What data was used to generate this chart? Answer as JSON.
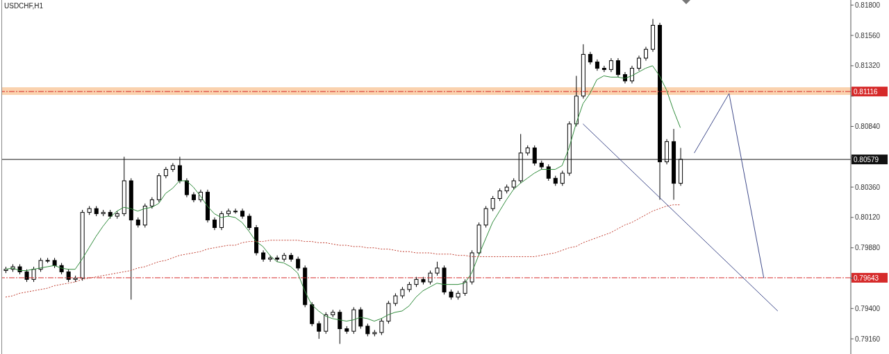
{
  "chart_data": {
    "type": "candlestick",
    "title": "USDCHF,H1",
    "categories": [
      null,
      null,
      null,
      null,
      null,
      null,
      null,
      null,
      null,
      null,
      null,
      null,
      null,
      null,
      null,
      null,
      null,
      null,
      null,
      null,
      null,
      null,
      null,
      null,
      null,
      null,
      null,
      null,
      null,
      null,
      null,
      null,
      null,
      null,
      null,
      null,
      null,
      null,
      null,
      null,
      null,
      null,
      null,
      null,
      null,
      null,
      null,
      null,
      null,
      null,
      null,
      null,
      null,
      null,
      null,
      null,
      null,
      null,
      null,
      null,
      null,
      null,
      null,
      null,
      null,
      null,
      null,
      null,
      null,
      null,
      null,
      null,
      null,
      null,
      null,
      null,
      null,
      null,
      null,
      null,
      null,
      null,
      null,
      null,
      null,
      null,
      null,
      null,
      null,
      null,
      null,
      null,
      null,
      null,
      null,
      null,
      null,
      null,
      null,
      null,
      null,
      null,
      null,
      null,
      null,
      null,
      null,
      null,
      null,
      null,
      null,
      null,
      null,
      null,
      null,
      null,
      null,
      null,
      null,
      null,
      null,
      null
    ],
    "ohlc": [
      [
        0.797,
        0.7973,
        0.7968,
        0.7971
      ],
      [
        0.7971,
        0.7975,
        0.7969,
        0.7973
      ],
      [
        0.7973,
        0.7975,
        0.7967,
        0.7969
      ],
      [
        0.7969,
        0.7971,
        0.7961,
        0.7963
      ],
      [
        0.7963,
        0.7973,
        0.7961,
        0.7971
      ],
      [
        0.7971,
        0.798,
        0.7969,
        0.7978
      ],
      [
        0.7978,
        0.798,
        0.7976,
        0.7978
      ],
      [
        0.7978,
        0.798,
        0.7972,
        0.7974
      ],
      [
        0.7974,
        0.7976,
        0.7967,
        0.7969
      ],
      [
        0.7969,
        0.7971,
        0.7961,
        0.7963
      ],
      [
        0.7963,
        0.7966,
        0.7961,
        0.7964
      ],
      [
        0.7964,
        0.8018,
        0.7962,
        0.8016
      ],
      [
        0.8016,
        0.8021,
        0.8014,
        0.8019
      ],
      [
        0.8019,
        0.8021,
        0.8013,
        0.8015
      ],
      [
        0.8015,
        0.8018,
        0.8013,
        0.8016
      ],
      [
        0.8016,
        0.8018,
        0.8011,
        0.8013
      ],
      [
        0.8013,
        0.8017,
        0.8011,
        0.8015
      ],
      [
        0.8015,
        0.806,
        0.8013,
        0.8041
      ],
      [
        0.8041,
        0.8043,
        0.7947,
        0.801
      ],
      [
        0.801,
        0.8012,
        0.8004,
        0.8006
      ],
      [
        0.8006,
        0.8023,
        0.8004,
        0.8021
      ],
      [
        0.8021,
        0.8028,
        0.8019,
        0.8026
      ],
      [
        0.8026,
        0.8047,
        0.8024,
        0.8045
      ],
      [
        0.8045,
        0.8052,
        0.8043,
        0.805
      ],
      [
        0.805,
        0.8055,
        0.8048,
        0.8053
      ],
      [
        0.8053,
        0.806,
        0.8039,
        0.8041
      ],
      [
        0.8041,
        0.8043,
        0.8028,
        0.803
      ],
      [
        0.803,
        0.8032,
        0.8024,
        0.8026
      ],
      [
        0.8026,
        0.8034,
        0.8024,
        0.8032
      ],
      [
        0.8032,
        0.8034,
        0.8008,
        0.801
      ],
      [
        0.801,
        0.8012,
        0.8002,
        0.8004
      ],
      [
        0.8004,
        0.8017,
        0.8002,
        0.8015
      ],
      [
        0.8015,
        0.8019,
        0.8013,
        0.8017
      ],
      [
        0.8017,
        0.8019,
        0.8015,
        0.8017
      ],
      [
        0.8017,
        0.8019,
        0.8011,
        0.8013
      ],
      [
        0.8013,
        0.8015,
        0.8002,
        0.8004
      ],
      [
        0.8004,
        0.8006,
        0.7982,
        0.7984
      ],
      [
        0.7984,
        0.7986,
        0.7977,
        0.7979
      ],
      [
        0.7979,
        0.7982,
        0.7977,
        0.798
      ],
      [
        0.798,
        0.7982,
        0.7977,
        0.7979
      ],
      [
        0.7979,
        0.7984,
        0.7977,
        0.7982
      ],
      [
        0.7982,
        0.7984,
        0.7977,
        0.7979
      ],
      [
        0.7979,
        0.7981,
        0.797,
        0.7972
      ],
      [
        0.7972,
        0.7974,
        0.7941,
        0.7943
      ],
      [
        0.7943,
        0.7945,
        0.7926,
        0.7928
      ],
      [
        0.7928,
        0.793,
        0.7916,
        0.7922
      ],
      [
        0.7922,
        0.7937,
        0.792,
        0.7935
      ],
      [
        0.7935,
        0.7939,
        0.7933,
        0.7937
      ],
      [
        0.7937,
        0.7939,
        0.7912,
        0.7924
      ],
      [
        0.7924,
        0.7926,
        0.792,
        0.7922
      ],
      [
        0.7922,
        0.7941,
        0.792,
        0.7939
      ],
      [
        0.7939,
        0.7941,
        0.7924,
        0.7926
      ],
      [
        0.7926,
        0.7928,
        0.7918,
        0.792
      ],
      [
        0.792,
        0.7923,
        0.7918,
        0.7921
      ],
      [
        0.7921,
        0.7932,
        0.7919,
        0.793
      ],
      [
        0.793,
        0.7946,
        0.7928,
        0.7944
      ],
      [
        0.7944,
        0.7952,
        0.7942,
        0.795
      ],
      [
        0.795,
        0.7957,
        0.7948,
        0.7955
      ],
      [
        0.7955,
        0.7961,
        0.7953,
        0.7959
      ],
      [
        0.7959,
        0.7965,
        0.7957,
        0.7963
      ],
      [
        0.7963,
        0.7965,
        0.7959,
        0.7961
      ],
      [
        0.7961,
        0.797,
        0.7959,
        0.7968
      ],
      [
        0.7968,
        0.7977,
        0.7966,
        0.7972
      ],
      [
        0.7972,
        0.7974,
        0.7951,
        0.7953
      ],
      [
        0.7953,
        0.7955,
        0.7947,
        0.7949
      ],
      [
        0.7949,
        0.7954,
        0.7947,
        0.7952
      ],
      [
        0.7952,
        0.7963,
        0.795,
        0.7961
      ],
      [
        0.7961,
        0.7986,
        0.7959,
        0.7984
      ],
      [
        0.7984,
        0.8008,
        0.7982,
        0.8006
      ],
      [
        0.8006,
        0.8021,
        0.8004,
        0.8019
      ],
      [
        0.8019,
        0.8029,
        0.8017,
        0.8027
      ],
      [
        0.8027,
        0.8035,
        0.8025,
        0.8033
      ],
      [
        0.8033,
        0.8038,
        0.8031,
        0.8036
      ],
      [
        0.8036,
        0.8043,
        0.8034,
        0.8041
      ],
      [
        0.8041,
        0.8078,
        0.8039,
        0.8063
      ],
      [
        0.8063,
        0.8069,
        0.8061,
        0.8067
      ],
      [
        0.8067,
        0.8069,
        0.8053,
        0.8055
      ],
      [
        0.8055,
        0.8057,
        0.805,
        0.8052
      ],
      [
        0.8052,
        0.8054,
        0.8041,
        0.8043
      ],
      [
        0.8043,
        0.8045,
        0.8037,
        0.8039
      ],
      [
        0.8039,
        0.8049,
        0.8037,
        0.8047
      ],
      [
        0.8047,
        0.8088,
        0.8045,
        0.8086
      ],
      [
        0.8086,
        0.8124,
        0.8084,
        0.8108
      ],
      [
        0.8108,
        0.8149,
        0.8106,
        0.8141
      ],
      [
        0.8141,
        0.8143,
        0.8133,
        0.8135
      ],
      [
        0.8135,
        0.8137,
        0.8128,
        0.813
      ],
      [
        0.813,
        0.8132,
        0.8127,
        0.8129
      ],
      [
        0.8129,
        0.8138,
        0.8127,
        0.8136
      ],
      [
        0.8136,
        0.8138,
        0.8123,
        0.8125
      ],
      [
        0.8125,
        0.8127,
        0.8118,
        0.812
      ],
      [
        0.812,
        0.8132,
        0.8118,
        0.813
      ],
      [
        0.813,
        0.814,
        0.8128,
        0.8138
      ],
      [
        0.8138,
        0.8147,
        0.8136,
        0.8145
      ],
      [
        0.8145,
        0.8169,
        0.8143,
        0.8164
      ],
      [
        0.8164,
        0.8166,
        0.8026,
        0.8056
      ],
      [
        0.8056,
        0.8074,
        0.8054,
        0.8072
      ],
      [
        0.8072,
        0.8082,
        0.8026,
        0.8039
      ],
      [
        0.8039,
        0.8067,
        0.8037,
        0.8058
      ],
      null,
      null,
      null,
      null,
      null,
      null,
      null,
      null,
      null,
      null,
      null,
      null,
      null,
      null,
      null,
      null,
      null,
      null,
      null,
      null,
      null,
      null,
      null,
      null
    ],
    "series": [
      {
        "type": "line",
        "color": "#2e8b3a",
        "values": [
          0.7971,
          0.7972,
          0.797,
          0.797,
          0.7971,
          0.7972,
          0.7973,
          0.7974,
          0.7972,
          0.7971,
          0.7971,
          0.7979,
          0.7988,
          0.7997,
          0.8005,
          0.8012,
          0.8017,
          0.802,
          0.8019,
          0.8017,
          0.8019,
          0.802,
          0.8023,
          0.8031,
          0.8035,
          0.8041,
          0.8041,
          0.8036,
          0.8029,
          0.8021,
          0.8015,
          0.8012,
          0.8013,
          0.8012,
          0.8008,
          0.8001,
          0.7993,
          0.7989,
          0.7982,
          0.7977,
          0.7976,
          0.7973,
          0.7968,
          0.7954,
          0.7943,
          0.7938,
          0.7934,
          0.7932,
          0.7931,
          0.793,
          0.7931,
          0.7933,
          0.7932,
          0.793,
          0.7932,
          0.7935,
          0.7937,
          0.7938,
          0.7942,
          0.7949,
          0.7954,
          0.7957,
          0.796,
          0.7959,
          0.7959,
          0.7959,
          0.796,
          0.7968,
          0.7982,
          0.7995,
          0.8008,
          0.8017,
          0.8026,
          0.8034,
          0.8039,
          0.8043,
          0.8047,
          0.805,
          0.805,
          0.805,
          0.8053,
          0.8067,
          0.8086,
          0.8102,
          0.811,
          0.8121,
          0.8124,
          0.8123,
          0.8123,
          0.8122,
          0.8124,
          0.8127,
          0.813,
          0.8132,
          0.8124,
          0.8113,
          0.8097,
          0.8083,
          null,
          null,
          null,
          null,
          null,
          null,
          null,
          null,
          null,
          null,
          null,
          null,
          null,
          null,
          null,
          null,
          null,
          null,
          null,
          null,
          null,
          null,
          null,
          null
        ]
      },
      {
        "type": "line",
        "color": "#c0392b",
        "line_style": "dotted",
        "values": [
          0.7949,
          0.795,
          0.7952,
          0.7953,
          0.7954,
          0.7955,
          0.7956,
          0.7958,
          0.7959,
          0.796,
          0.7961,
          0.7963,
          0.7964,
          0.7965,
          0.7966,
          0.7967,
          0.7968,
          0.7969,
          0.797,
          0.7972,
          0.7973,
          0.7975,
          0.7977,
          0.7978,
          0.798,
          0.7982,
          0.7983,
          0.7984,
          0.7985,
          0.7987,
          0.7988,
          0.7989,
          0.799,
          0.799,
          0.7992,
          0.7993,
          0.7993,
          0.7993,
          0.7994,
          0.7994,
          0.7994,
          0.7994,
          0.7994,
          0.7993,
          0.7993,
          0.7992,
          0.7992,
          0.7991,
          0.799,
          0.799,
          0.7989,
          0.7989,
          0.7988,
          0.7988,
          0.7987,
          0.7987,
          0.7986,
          0.7985,
          0.7985,
          0.7984,
          0.7984,
          0.7984,
          0.7983,
          0.7983,
          0.7983,
          0.7982,
          0.7982,
          0.7981,
          0.7981,
          0.7981,
          0.7981,
          0.7981,
          0.7981,
          0.7981,
          0.7981,
          0.7981,
          0.7981,
          0.7982,
          0.7983,
          0.7984,
          0.7986,
          0.7988,
          0.7989,
          0.7992,
          0.7994,
          0.7996,
          0.7998,
          0.8,
          0.8003,
          0.8006,
          0.8008,
          0.8011,
          0.8014,
          0.8017,
          0.8019,
          0.8021,
          0.8022,
          0.8022,
          null,
          null,
          null,
          null,
          null,
          null,
          null,
          null,
          null,
          null,
          null,
          null,
          null,
          null,
          null,
          null,
          null,
          null,
          null,
          null,
          null,
          null,
          null,
          null
        ]
      },
      {
        "type": "line",
        "color": "#3f4a8a",
        "values": [
          null,
          null,
          null,
          null,
          null,
          null,
          null,
          null,
          null,
          null,
          null,
          null,
          null,
          null,
          null,
          null,
          null,
          null,
          null,
          null,
          null,
          null,
          null,
          null,
          null,
          null,
          null,
          null,
          null,
          null,
          null,
          null,
          null,
          null,
          null,
          null,
          null,
          null,
          null,
          null,
          null,
          null,
          null,
          null,
          null,
          null,
          null,
          null,
          null,
          null,
          null,
          null,
          null,
          null,
          null,
          null,
          null,
          null,
          null,
          null,
          null,
          null,
          null,
          null,
          null,
          null,
          null,
          null,
          null,
          null,
          null,
          null,
          null,
          null,
          null,
          null,
          null,
          null,
          null,
          null,
          null,
          null,
          null,
          0.8086,
          null,
          null,
          null,
          null,
          null,
          null,
          null,
          null,
          null,
          null,
          null,
          null,
          null,
          null,
          null,
          null,
          null,
          null,
          null,
          null,
          null,
          null,
          null,
          null,
          null,
          null,
          null,
          0.7938,
          null,
          null,
          null,
          null,
          null,
          null,
          null,
          null,
          null,
          null
        ]
      },
      {
        "type": "line",
        "color": "#3f4a8a",
        "values": [
          null,
          null,
          null,
          null,
          null,
          null,
          null,
          null,
          null,
          null,
          null,
          null,
          null,
          null,
          null,
          null,
          null,
          null,
          null,
          null,
          null,
          null,
          null,
          null,
          null,
          null,
          null,
          null,
          null,
          null,
          null,
          null,
          null,
          null,
          null,
          null,
          null,
          null,
          null,
          null,
          null,
          null,
          null,
          null,
          null,
          null,
          null,
          null,
          null,
          null,
          null,
          null,
          null,
          null,
          null,
          null,
          null,
          null,
          null,
          null,
          null,
          null,
          null,
          null,
          null,
          null,
          null,
          null,
          null,
          null,
          null,
          null,
          null,
          null,
          null,
          null,
          null,
          null,
          null,
          null,
          null,
          null,
          null,
          null,
          null,
          null,
          null,
          null,
          null,
          null,
          null,
          null,
          null,
          null,
          null,
          null,
          null,
          null,
          null,
          0.8063,
          null,
          null,
          null,
          null,
          0.811,
          null,
          null,
          null,
          null,
          0.7964,
          null,
          null,
          null,
          null,
          null,
          null,
          null,
          null,
          null,
          null,
          null,
          null
        ]
      }
    ],
    "ylim": [
      0.7904,
      0.8184
    ],
    "yticks": [
      {
        "value": 0.818,
        "label": "0.81800"
      },
      {
        "value": 0.8156,
        "label": "0.81560"
      },
      {
        "value": 0.8132,
        "label": "0.81320"
      },
      {
        "value": 0.8108,
        "label": null
      },
      {
        "value": 0.8084,
        "label": "0.80840"
      },
      {
        "value": 0.806,
        "label": null
      },
      {
        "value": 0.8036,
        "label": "0.80360"
      },
      {
        "value": 0.8012,
        "label": "0.80120"
      },
      {
        "value": 0.7988,
        "label": "0.79880"
      },
      {
        "value": 0.7964,
        "label": null
      },
      {
        "value": 0.794,
        "label": "0.79400"
      },
      {
        "value": 0.7916,
        "label": "0.79160"
      }
    ],
    "ref_lines": [
      {
        "axis": "y",
        "value": 0.81116,
        "label": "0.81116",
        "color": "#d62a2a",
        "line_style": "dashed"
      },
      {
        "axis": "y",
        "value": 0.79643,
        "label": "0.79643",
        "color": "#d62a2a",
        "line_style": "dashed"
      },
      {
        "axis": "y",
        "value": 0.80579,
        "label": "0.80579",
        "color": "#111111",
        "line_style": "solid"
      }
    ],
    "bands": [
      {
        "axis": "y",
        "from": 0.8109,
        "to": 0.8115,
        "color": "#f9c79a"
      }
    ],
    "tick_labels": "y",
    "grid": false,
    "legend": false,
    "marker": "none"
  }
}
